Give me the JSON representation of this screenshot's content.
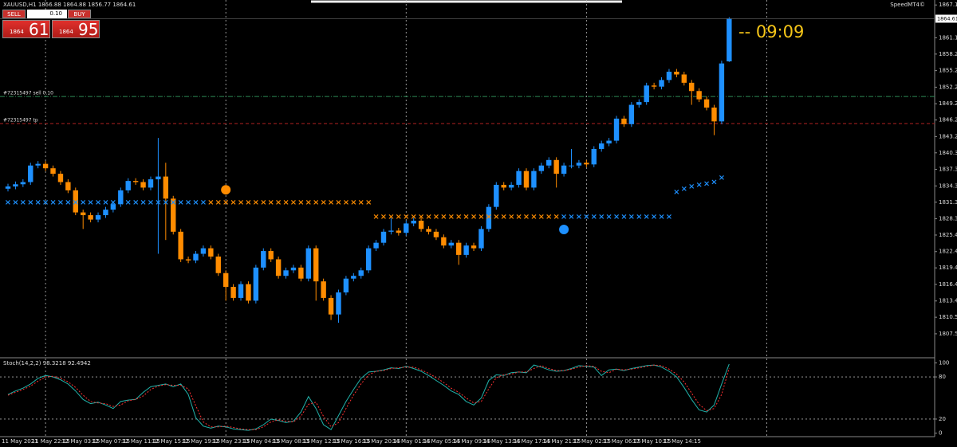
{
  "header": {
    "symbol_info": "XAUUSD,H1  1856.88 1864.88 1856.77 1864.61",
    "brand": "SpeedMT4©"
  },
  "trade_panel": {
    "sell": "SELL",
    "lot": "0.10",
    "buy": "BUY",
    "bid_prefix": "1864",
    "bid_pips": "61",
    "ask_prefix": "1864",
    "ask_pips": "95"
  },
  "timer": "-- 09:09",
  "chart_data": [
    {
      "type": "candlestick",
      "categories": [
        "11 May 2021",
        null,
        null,
        null,
        "11 May 22:15",
        null,
        null,
        null,
        "12 May 03:15",
        null,
        null,
        null,
        "12 May 07:15",
        null,
        null,
        null,
        "12 May 11:15",
        null,
        null,
        null,
        "12 May 15:15",
        null,
        null,
        null,
        "12 May 19:15",
        null,
        null,
        null,
        "12 May 23:15",
        null,
        null,
        null,
        "13 May 04:15",
        null,
        null,
        null,
        "13 May 08:15",
        null,
        null,
        null,
        "13 May 12:15",
        null,
        null,
        null,
        "13 May 16:15",
        null,
        null,
        null,
        "13 May 20:15",
        null,
        null,
        null,
        "14 May 01:15",
        null,
        null,
        null,
        "14 May 05:15",
        null,
        null,
        null,
        "14 May 09:15",
        null,
        null,
        null,
        "14 May 13:15",
        null,
        null,
        null,
        "14 May 17:15",
        null,
        null,
        null,
        "14 May 21:15",
        null,
        null,
        null,
        "17 May 02:15",
        null,
        null,
        null,
        "17 May 06:15",
        null,
        null,
        null,
        "17 May 10:15",
        null,
        null,
        null,
        "17 May 14:15",
        null,
        null,
        null,
        null,
        null,
        null,
        null,
        null
      ],
      "open": [
        1833.8,
        1834.2,
        1834.6,
        1835.0,
        1838.0,
        1838.3,
        1837.5,
        1836.5,
        1835.0,
        1833.5,
        1829.5,
        1829.0,
        1828.2,
        1829.0,
        1830.0,
        1831.0,
        1833.5,
        1835.2,
        1835.0,
        1834.0,
        1835.5,
        1836.0,
        1832.0,
        1826.0,
        1821.0,
        1820.8,
        1822.0,
        1823.0,
        1821.5,
        1818.5,
        1816.0,
        1814.0,
        1816.5,
        1813.5,
        1819.5,
        1822.5,
        1821.0,
        1818.0,
        1819.0,
        1819.5,
        1817.5,
        1823.0,
        1817.0,
        1814.0,
        1811.0,
        1815.0,
        1817.5,
        1818.0,
        1819.0,
        1823.0,
        1824.0,
        1826.0,
        1826.2,
        1825.8,
        1827.5,
        1828.0,
        1826.5,
        1826.0,
        1825.0,
        1823.5,
        1824.0,
        1821.8,
        1823.5,
        1823.0,
        1826.5,
        1830.5,
        1834.5,
        1834.0,
        1834.5,
        1837.0,
        1834.0,
        1837.0,
        1838.0,
        1839.0,
        1836.5,
        1838.0,
        1838.0,
        1838.5,
        1838.2,
        1841.0,
        1842.0,
        1842.5,
        1846.5,
        1845.5,
        1849.0,
        1849.5,
        1852.5,
        1852.3,
        1853.5,
        1855.0,
        1854.5,
        1853.0,
        1851.5,
        1850.0,
        1848.5,
        1846.0,
        1856.88
      ],
      "high": [
        1834.7,
        1835.1,
        1835.5,
        1838.5,
        1838.8,
        1838.8,
        1838.0,
        1837.0,
        1835.5,
        1834.0,
        1830.0,
        1829.5,
        1829.5,
        1830.5,
        1831.5,
        1834.0,
        1835.7,
        1835.7,
        1835.5,
        1836.0,
        1843.0,
        1838.5,
        1832.5,
        1826.5,
        1821.5,
        1822.5,
        1823.5,
        1823.5,
        1822.0,
        1819.0,
        1816.5,
        1817.0,
        1817.0,
        1820.0,
        1823.0,
        1823.0,
        1821.5,
        1819.5,
        1820.0,
        1820.0,
        1823.5,
        1823.5,
        1817.5,
        1814.5,
        1815.5,
        1818.0,
        1818.5,
        1819.5,
        1823.5,
        1824.5,
        1826.5,
        1828.5,
        1826.7,
        1828.0,
        1828.5,
        1828.5,
        1827.0,
        1826.5,
        1825.5,
        1824.5,
        1824.5,
        1824.0,
        1824.0,
        1827.0,
        1831.0,
        1835.0,
        1835.0,
        1835.0,
        1837.5,
        1837.5,
        1837.5,
        1838.5,
        1839.5,
        1839.5,
        1838.5,
        1841.0,
        1839.0,
        1839.0,
        1841.5,
        1842.5,
        1843.0,
        1847.0,
        1847.0,
        1849.5,
        1850.0,
        1853.0,
        1853.0,
        1854.0,
        1855.5,
        1855.5,
        1855.0,
        1853.5,
        1852.0,
        1850.5,
        1849.0,
        1857.0,
        1864.88
      ],
      "low": [
        1833.3,
        1833.7,
        1834.1,
        1834.5,
        1837.5,
        1837.0,
        1836.0,
        1834.5,
        1833.0,
        1829.0,
        1826.5,
        1827.7,
        1827.7,
        1828.5,
        1829.5,
        1830.5,
        1833.0,
        1834.5,
        1833.5,
        1833.5,
        1822.0,
        1824.5,
        1825.5,
        1820.5,
        1820.3,
        1820.3,
        1821.5,
        1821.0,
        1818.0,
        1813.5,
        1813.5,
        1813.5,
        1813.0,
        1813.0,
        1819.0,
        1820.5,
        1817.5,
        1817.5,
        1818.5,
        1817.0,
        1817.0,
        1813.5,
        1813.5,
        1810.0,
        1809.5,
        1814.5,
        1817.0,
        1817.5,
        1818.5,
        1822.5,
        1823.5,
        1825.5,
        1825.3,
        1825.3,
        1827.0,
        1826.0,
        1825.5,
        1824.5,
        1823.0,
        1823.0,
        1820.0,
        1821.3,
        1822.5,
        1822.5,
        1826.0,
        1830.0,
        1833.5,
        1833.5,
        1834.0,
        1833.5,
        1833.5,
        1836.5,
        1837.5,
        1834.0,
        1836.0,
        1837.5,
        1837.5,
        1837.7,
        1837.7,
        1840.5,
        1841.5,
        1842.0,
        1845.0,
        1845.0,
        1848.5,
        1849.0,
        1851.8,
        1851.8,
        1853.0,
        1854.0,
        1852.5,
        1849.0,
        1849.5,
        1848.0,
        1843.5,
        1845.5,
        1856.77
      ],
      "close": [
        1834.2,
        1834.6,
        1835.0,
        1838.0,
        1838.3,
        1837.5,
        1836.5,
        1835.0,
        1833.5,
        1829.5,
        1829.0,
        1828.2,
        1829.0,
        1830.0,
        1831.0,
        1833.5,
        1835.2,
        1835.0,
        1834.0,
        1835.5,
        1836.0,
        1832.0,
        1826.0,
        1821.0,
        1820.8,
        1822.0,
        1823.0,
        1821.5,
        1818.5,
        1816.0,
        1814.0,
        1816.5,
        1813.5,
        1819.5,
        1822.5,
        1821.0,
        1818.0,
        1819.0,
        1819.5,
        1817.5,
        1823.0,
        1817.0,
        1814.0,
        1811.0,
        1815.0,
        1817.5,
        1818.0,
        1819.0,
        1823.0,
        1824.0,
        1826.0,
        1826.2,
        1825.8,
        1827.5,
        1828.0,
        1826.5,
        1826.0,
        1825.0,
        1823.5,
        1824.0,
        1821.8,
        1823.5,
        1823.0,
        1826.5,
        1830.5,
        1834.5,
        1834.0,
        1834.5,
        1837.0,
        1834.0,
        1837.0,
        1838.0,
        1839.0,
        1836.5,
        1838.0,
        1838.0,
        1838.5,
        1838.2,
        1841.0,
        1842.0,
        1842.5,
        1846.5,
        1845.5,
        1849.0,
        1849.5,
        1852.5,
        1852.3,
        1853.5,
        1855.0,
        1854.5,
        1853.0,
        1851.5,
        1850.0,
        1848.5,
        1846.0,
        1856.5,
        1864.61
      ],
      "up_color": "#1e90ff",
      "down_color": "#ff8c00",
      "ylim": [
        1803.3,
        1868.0
      ],
      "yticks": [
        {
          "value": 1867.1,
          "label": "1867.10"
        },
        1861.15,
        {
          "value": 1858.2,
          "label": "1858.20"
        },
        {
          "value": 1855.2,
          "label": "1855.20"
        },
        {
          "value": 1852.2,
          "label": "1852.20"
        },
        {
          "value": 1849.2,
          "label": "1849.20"
        },
        1846.25,
        1843.25,
        {
          "value": 1840.3,
          "label": "1840.30"
        },
        {
          "value": 1837.3,
          "label": "1837.30"
        },
        {
          "value": 1834.3,
          "label": "1834.30"
        },
        1831.35,
        1828.35,
        {
          "value": 1825.4,
          "label": "1825.40"
        },
        {
          "value": 1822.4,
          "label": "1822.40"
        },
        1819.45,
        1816.45,
        1813.45,
        {
          "value": 1810.5,
          "label": "1810.50"
        },
        {
          "value": 1807.5,
          "label": "1807.50"
        }
      ],
      "xgrid": [
        5,
        29,
        53,
        77,
        101
      ],
      "last_price": 1864.61,
      "order_lines": [
        {
          "label": "#72315497 sell 0.10",
          "value": 1850.5,
          "color": "#2e8b57"
        },
        {
          "label": "#72315497 tp",
          "value": 1845.6,
          "color": "#b22222"
        }
      ],
      "markers": [
        {
          "color": "#1e90ff",
          "values": [
            1831.3,
            1831.3,
            1831.3,
            1831.3,
            1831.3,
            1831.3,
            1831.3,
            1831.3,
            1831.3,
            1831.3,
            1831.3,
            1831.3,
            1831.3,
            1831.3,
            1831.3,
            1831.3,
            1831.3,
            1831.3,
            1831.3,
            1831.3,
            1831.3,
            1831.3,
            1831.3,
            1831.3,
            1831.3,
            1831.3,
            1831.3,
            null,
            null,
            null,
            null,
            null,
            null,
            null,
            null,
            null,
            null,
            null,
            null,
            null,
            null,
            null,
            null,
            null,
            null,
            null,
            null,
            null,
            null,
            null,
            null,
            null,
            null,
            null,
            null,
            null,
            null,
            null,
            null,
            null,
            null,
            null,
            null,
            null,
            null,
            null,
            null,
            null,
            null,
            null,
            null,
            null,
            null,
            null,
            1828.7,
            1828.7,
            1828.7,
            1828.7,
            1828.7,
            1828.7,
            1828.7,
            1828.7,
            1828.7,
            1828.7,
            1828.7,
            1828.7,
            1828.7,
            1828.7,
            1828.7,
            1833.2,
            1833.8,
            1834.2,
            1834.5,
            1834.7,
            1835.0,
            1835.8,
            null
          ]
        },
        {
          "color": "#ff8c00",
          "values": [
            null,
            null,
            null,
            null,
            null,
            null,
            null,
            null,
            null,
            null,
            null,
            null,
            null,
            null,
            null,
            null,
            null,
            null,
            null,
            null,
            null,
            null,
            null,
            null,
            null,
            null,
            null,
            1831.3,
            1831.3,
            1831.3,
            1831.3,
            1831.3,
            1831.3,
            1831.3,
            1831.3,
            1831.3,
            1831.3,
            1831.3,
            1831.3,
            1831.3,
            1831.3,
            1831.3,
            1831.3,
            1831.3,
            1831.3,
            1831.3,
            1831.3,
            1831.3,
            1831.3,
            1828.7,
            1828.7,
            1828.7,
            1828.7,
            1828.7,
            1828.7,
            1828.7,
            1828.7,
            1828.7,
            1828.7,
            1828.7,
            1828.7,
            1828.7,
            1828.7,
            1828.7,
            1828.7,
            1828.7,
            1828.7,
            1828.7,
            1828.7,
            1828.7,
            1828.7,
            1828.7,
            1828.7,
            1828.7,
            null,
            null,
            null,
            null,
            null,
            null,
            null,
            null,
            null,
            null,
            null,
            null,
            null,
            null,
            null,
            null,
            null,
            null,
            null,
            null,
            null,
            null,
            null
          ]
        }
      ],
      "dots": [
        {
          "index": 29,
          "value": 1833.6,
          "color": "#ff8c00"
        },
        {
          "index": 74,
          "value": 1826.4,
          "color": "#1e90ff"
        }
      ]
    },
    {
      "type": "line",
      "title": "Stoch(14,2,2) 98.3218 92.4942",
      "series": [
        {
          "color": "#20b2aa",
          "dash": false,
          "values": [
            55,
            60,
            64,
            70,
            78,
            82,
            80,
            76,
            70,
            60,
            48,
            42,
            44,
            40,
            35,
            45,
            47,
            48,
            58,
            66,
            68,
            70,
            66,
            70,
            55,
            22,
            10,
            7,
            10,
            9,
            6,
            5,
            4,
            6,
            12,
            20,
            18,
            15,
            17,
            30,
            52,
            35,
            12,
            5,
            25,
            45,
            62,
            78,
            87,
            88,
            90,
            93,
            92,
            95,
            92,
            88,
            82,
            75,
            68,
            60,
            55,
            45,
            40,
            50,
            75,
            83,
            82,
            86,
            87,
            86,
            97,
            94,
            90,
            88,
            89,
            92,
            96,
            95,
            94,
            82,
            90,
            91,
            89,
            92,
            94,
            96,
            97,
            94,
            88,
            80,
            65,
            48,
            33,
            30,
            40,
            70,
            98.3218
          ]
        },
        {
          "color": "#ff3030",
          "dash": true,
          "values": [
            54,
            58,
            62,
            67,
            74,
            80,
            81,
            78,
            73,
            65,
            54,
            45,
            43,
            42,
            38,
            40,
            46,
            48,
            53,
            62,
            67,
            69,
            68,
            68,
            63,
            39,
            16,
            9,
            9,
            10,
            8,
            6,
            5,
            5,
            9,
            16,
            19,
            17,
            16,
            24,
            41,
            44,
            24,
            9,
            15,
            35,
            54,
            70,
            83,
            88,
            89,
            92,
            93,
            94,
            94,
            90,
            85,
            79,
            72,
            64,
            58,
            50,
            43,
            45,
            63,
            79,
            83,
            84,
            87,
            87,
            92,
            96,
            92,
            89,
            89,
            91,
            94,
            96,
            95,
            88,
            86,
            91,
            90,
            91,
            93,
            95,
            97,
            96,
            91,
            84,
            73,
            57,
            41,
            32,
            35,
            55,
            92.4942
          ]
        }
      ],
      "ylim": [
        -5,
        105
      ],
      "yticks": [
        100,
        80,
        20,
        0
      ],
      "levels": [
        80,
        20
      ]
    }
  ]
}
